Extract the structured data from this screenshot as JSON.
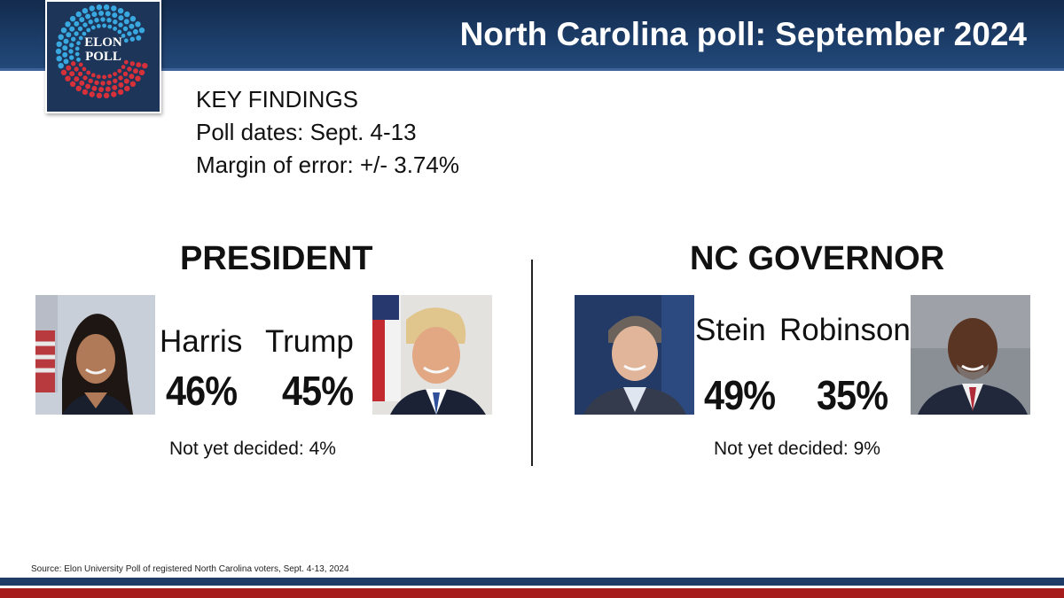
{
  "header": {
    "title": "North Carolina poll: September 2024",
    "colors": {
      "bar": "#1e416f",
      "text": "#ffffff"
    }
  },
  "logo": {
    "line1": "ELON",
    "line2": "POLL",
    "colors": {
      "background": "#1c3558",
      "blue_dots": "#39a8e0",
      "red_dots": "#d6303a"
    }
  },
  "findings": {
    "heading": "KEY FINDINGS",
    "dates": "Poll dates: Sept. 4-13",
    "margin": "Margin of error: +/- 3.74%"
  },
  "races": [
    {
      "heading": "PRESIDENT",
      "candidates": [
        {
          "name": "Harris",
          "percent": "46%",
          "photo": "harris-photo"
        },
        {
          "name": "Trump",
          "percent": "45%",
          "photo": "trump-photo"
        }
      ],
      "undecided": "Not yet decided: 4%"
    },
    {
      "heading": "NC GOVERNOR",
      "candidates": [
        {
          "name": "Stein",
          "percent": "49%",
          "photo": "stein-photo"
        },
        {
          "name": "Robinson",
          "percent": "35%",
          "photo": "robinson-photo"
        }
      ],
      "undecided": "Not yet decided: 9%"
    }
  ],
  "source": "Source: Elon University Poll of registered North Carolina voters, Sept. 4-13, 2024",
  "footer": {
    "colors": {
      "blue": "#1e3c66",
      "red": "#a61c1c"
    }
  }
}
